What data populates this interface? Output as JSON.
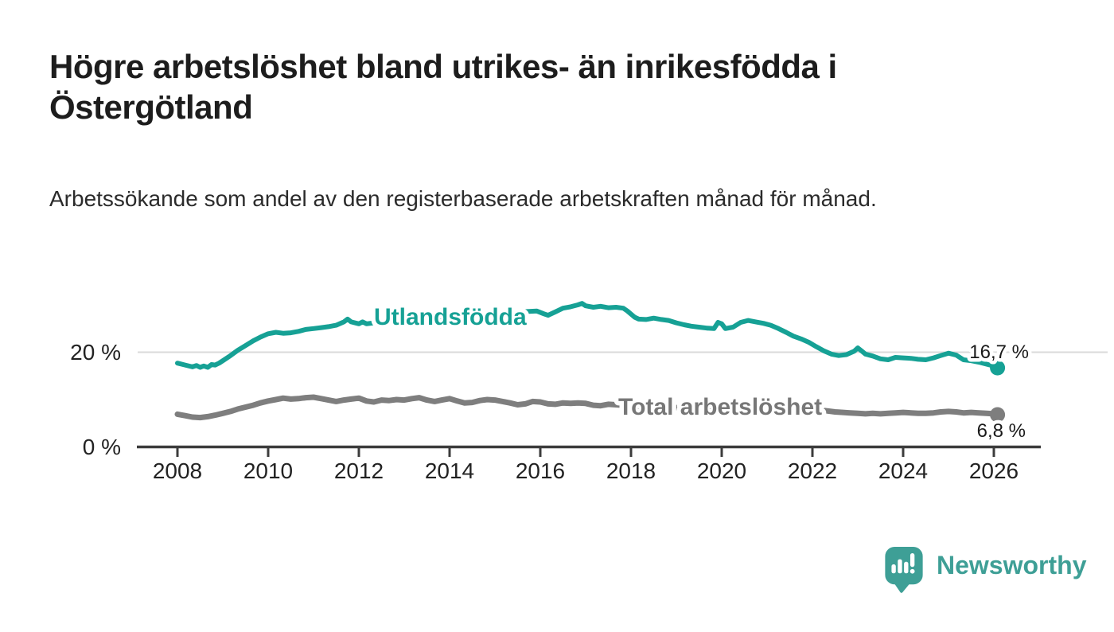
{
  "header": {
    "title": "Högre arbetslöshet bland utrikes- än inrikesfödda i Östergötland",
    "subtitle": "Arbetssökande som andel av den registerbaserade arbetskraften månad för månad."
  },
  "chart_data": {
    "type": "line",
    "title": "Högre arbetslöshet bland utrikes- än inrikesfödda i Östergötland",
    "subtitle": "Arbetssökande som andel av den registerbaserade arbetskraften månad för månad.",
    "unit": "%",
    "x_axis": {
      "ticks": [
        2008,
        2010,
        2012,
        2014,
        2016,
        2018,
        2020,
        2022,
        2024,
        2026
      ],
      "range_years": [
        2007.1,
        2027.0
      ],
      "grid": false
    },
    "y_axis": {
      "ticks": [
        {
          "value": 20,
          "label": "20 %"
        },
        {
          "value": 0,
          "label": "0 %"
        }
      ],
      "range": [
        0,
        33
      ],
      "grid_at": [
        20
      ]
    },
    "legend_position": "inline-labels-on-lines",
    "series": [
      {
        "name": "Utlandsfödda",
        "color": "#16a195",
        "end_value": 16.7,
        "end_label": "16,7 %",
        "points": [
          [
            2008.0,
            17.7
          ],
          [
            2008.17,
            17.3
          ],
          [
            2008.33,
            16.9
          ],
          [
            2008.42,
            17.2
          ],
          [
            2008.5,
            16.8
          ],
          [
            2008.58,
            17.1
          ],
          [
            2008.67,
            16.8
          ],
          [
            2008.75,
            17.4
          ],
          [
            2008.83,
            17.3
          ],
          [
            2008.92,
            17.7
          ],
          [
            2009.0,
            18.2
          ],
          [
            2009.17,
            19.3
          ],
          [
            2009.33,
            20.4
          ],
          [
            2009.5,
            21.4
          ],
          [
            2009.67,
            22.4
          ],
          [
            2009.83,
            23.2
          ],
          [
            2010.0,
            23.9
          ],
          [
            2010.17,
            24.2
          ],
          [
            2010.33,
            24.0
          ],
          [
            2010.5,
            24.1
          ],
          [
            2010.67,
            24.4
          ],
          [
            2010.83,
            24.8
          ],
          [
            2011.0,
            25.0
          ],
          [
            2011.17,
            25.2
          ],
          [
            2011.33,
            25.4
          ],
          [
            2011.5,
            25.7
          ],
          [
            2011.67,
            26.4
          ],
          [
            2011.75,
            27.0
          ],
          [
            2011.83,
            26.4
          ],
          [
            2012.0,
            26.0
          ],
          [
            2012.08,
            26.4
          ],
          [
            2012.17,
            26.0
          ],
          [
            2012.33,
            26.2
          ],
          [
            2012.5,
            26.5
          ],
          [
            2012.75,
            26.7
          ],
          [
            2013.0,
            26.9
          ],
          [
            2013.25,
            27.1
          ],
          [
            2013.5,
            27.3
          ],
          [
            2013.75,
            27.4
          ],
          [
            2014.0,
            27.6
          ],
          [
            2014.25,
            27.7
          ],
          [
            2014.5,
            27.9
          ],
          [
            2014.75,
            28.0
          ],
          [
            2015.0,
            28.2
          ],
          [
            2015.25,
            28.3
          ],
          [
            2015.5,
            28.5
          ],
          [
            2015.75,
            28.6
          ],
          [
            2015.92,
            28.7
          ],
          [
            2016.08,
            28.1
          ],
          [
            2016.17,
            27.8
          ],
          [
            2016.33,
            28.5
          ],
          [
            2016.5,
            29.3
          ],
          [
            2016.67,
            29.6
          ],
          [
            2016.83,
            30.0
          ],
          [
            2016.92,
            30.3
          ],
          [
            2017.0,
            29.8
          ],
          [
            2017.17,
            29.5
          ],
          [
            2017.33,
            29.7
          ],
          [
            2017.5,
            29.4
          ],
          [
            2017.67,
            29.5
          ],
          [
            2017.83,
            29.3
          ],
          [
            2017.92,
            28.7
          ],
          [
            2018.08,
            27.4
          ],
          [
            2018.17,
            27.0
          ],
          [
            2018.33,
            26.9
          ],
          [
            2018.5,
            27.2
          ],
          [
            2018.67,
            26.9
          ],
          [
            2018.83,
            26.7
          ],
          [
            2019.0,
            26.2
          ],
          [
            2019.17,
            25.8
          ],
          [
            2019.33,
            25.5
          ],
          [
            2019.5,
            25.3
          ],
          [
            2019.67,
            25.1
          ],
          [
            2019.83,
            25.0
          ],
          [
            2019.92,
            26.3
          ],
          [
            2020.0,
            26.0
          ],
          [
            2020.08,
            25.0
          ],
          [
            2020.25,
            25.3
          ],
          [
            2020.42,
            26.3
          ],
          [
            2020.58,
            26.7
          ],
          [
            2020.75,
            26.4
          ],
          [
            2020.92,
            26.1
          ],
          [
            2021.08,
            25.7
          ],
          [
            2021.25,
            25.0
          ],
          [
            2021.42,
            24.2
          ],
          [
            2021.58,
            23.4
          ],
          [
            2021.75,
            22.8
          ],
          [
            2021.92,
            22.1
          ],
          [
            2022.08,
            21.2
          ],
          [
            2022.25,
            20.3
          ],
          [
            2022.42,
            19.6
          ],
          [
            2022.58,
            19.3
          ],
          [
            2022.75,
            19.5
          ],
          [
            2022.92,
            20.2
          ],
          [
            2023.0,
            20.9
          ],
          [
            2023.08,
            20.3
          ],
          [
            2023.17,
            19.6
          ],
          [
            2023.33,
            19.2
          ],
          [
            2023.5,
            18.6
          ],
          [
            2023.67,
            18.4
          ],
          [
            2023.83,
            18.9
          ],
          [
            2024.0,
            18.8
          ],
          [
            2024.17,
            18.7
          ],
          [
            2024.33,
            18.5
          ],
          [
            2024.5,
            18.4
          ],
          [
            2024.67,
            18.8
          ],
          [
            2024.83,
            19.3
          ],
          [
            2025.0,
            19.8
          ],
          [
            2025.17,
            19.4
          ],
          [
            2025.33,
            18.4
          ],
          [
            2025.5,
            18.2
          ],
          [
            2025.67,
            17.9
          ],
          [
            2025.83,
            17.5
          ],
          [
            2026.0,
            17.1
          ],
          [
            2026.08,
            16.7
          ]
        ]
      },
      {
        "name": "Total arbetslöshet",
        "color": "#7e7e7e",
        "end_value": 6.8,
        "end_label": "6,8 %",
        "points": [
          [
            2008.0,
            6.9
          ],
          [
            2008.17,
            6.6
          ],
          [
            2008.33,
            6.3
          ],
          [
            2008.5,
            6.2
          ],
          [
            2008.67,
            6.4
          ],
          [
            2008.83,
            6.7
          ],
          [
            2009.0,
            7.1
          ],
          [
            2009.17,
            7.5
          ],
          [
            2009.33,
            8.0
          ],
          [
            2009.5,
            8.4
          ],
          [
            2009.67,
            8.8
          ],
          [
            2009.83,
            9.3
          ],
          [
            2010.0,
            9.7
          ],
          [
            2010.17,
            10.0
          ],
          [
            2010.33,
            10.3
          ],
          [
            2010.5,
            10.1
          ],
          [
            2010.67,
            10.2
          ],
          [
            2010.83,
            10.4
          ],
          [
            2011.0,
            10.5
          ],
          [
            2011.17,
            10.2
          ],
          [
            2011.33,
            9.9
          ],
          [
            2011.5,
            9.6
          ],
          [
            2011.67,
            9.9
          ],
          [
            2011.83,
            10.1
          ],
          [
            2012.0,
            10.3
          ],
          [
            2012.17,
            9.7
          ],
          [
            2012.33,
            9.5
          ],
          [
            2012.5,
            9.9
          ],
          [
            2012.67,
            9.8
          ],
          [
            2012.83,
            10.0
          ],
          [
            2013.0,
            9.9
          ],
          [
            2013.17,
            10.2
          ],
          [
            2013.33,
            10.4
          ],
          [
            2013.5,
            9.9
          ],
          [
            2013.67,
            9.6
          ],
          [
            2013.83,
            9.9
          ],
          [
            2014.0,
            10.2
          ],
          [
            2014.17,
            9.7
          ],
          [
            2014.33,
            9.3
          ],
          [
            2014.5,
            9.4
          ],
          [
            2014.67,
            9.8
          ],
          [
            2014.83,
            10.0
          ],
          [
            2015.0,
            9.9
          ],
          [
            2015.17,
            9.6
          ],
          [
            2015.33,
            9.3
          ],
          [
            2015.5,
            8.9
          ],
          [
            2015.67,
            9.1
          ],
          [
            2015.83,
            9.6
          ],
          [
            2016.0,
            9.5
          ],
          [
            2016.17,
            9.1
          ],
          [
            2016.33,
            9.0
          ],
          [
            2016.5,
            9.3
          ],
          [
            2016.67,
            9.2
          ],
          [
            2016.83,
            9.3
          ],
          [
            2017.0,
            9.2
          ],
          [
            2017.17,
            8.8
          ],
          [
            2017.33,
            8.7
          ],
          [
            2017.5,
            9.0
          ],
          [
            2017.67,
            8.9
          ],
          [
            2018.0,
            8.7
          ],
          [
            2018.33,
            8.5
          ],
          [
            2018.67,
            8.4
          ],
          [
            2019.0,
            8.3
          ],
          [
            2019.33,
            8.1
          ],
          [
            2019.67,
            8.0
          ],
          [
            2020.0,
            8.2
          ],
          [
            2020.25,
            9.0
          ],
          [
            2020.5,
            9.6
          ],
          [
            2020.75,
            9.5
          ],
          [
            2021.0,
            9.2
          ],
          [
            2021.33,
            8.8
          ],
          [
            2021.67,
            8.4
          ],
          [
            2022.0,
            8.0
          ],
          [
            2022.25,
            7.7
          ],
          [
            2022.5,
            7.4
          ],
          [
            2022.67,
            7.3
          ],
          [
            2022.83,
            7.2
          ],
          [
            2023.0,
            7.1
          ],
          [
            2023.17,
            7.0
          ],
          [
            2023.33,
            7.1
          ],
          [
            2023.5,
            7.0
          ],
          [
            2023.67,
            7.1
          ],
          [
            2023.83,
            7.2
          ],
          [
            2024.0,
            7.3
          ],
          [
            2024.17,
            7.2
          ],
          [
            2024.33,
            7.1
          ],
          [
            2024.5,
            7.1
          ],
          [
            2024.67,
            7.2
          ],
          [
            2024.83,
            7.4
          ],
          [
            2025.0,
            7.5
          ],
          [
            2025.17,
            7.4
          ],
          [
            2025.33,
            7.2
          ],
          [
            2025.5,
            7.3
          ],
          [
            2025.67,
            7.2
          ],
          [
            2025.83,
            7.1
          ],
          [
            2026.0,
            7.0
          ],
          [
            2026.08,
            6.8
          ]
        ]
      }
    ]
  },
  "branding": {
    "logo_text": "Newsworthy",
    "logo_icon": "speech-bubble-bar-chart-icon",
    "logo_color": "#3e9f96"
  },
  "colors": {
    "accent_teal": "#16a195",
    "series_gray": "#7e7e7e",
    "gridline": "#dadada",
    "axis": "#3c3c3c",
    "text": "#1d1d1d"
  }
}
